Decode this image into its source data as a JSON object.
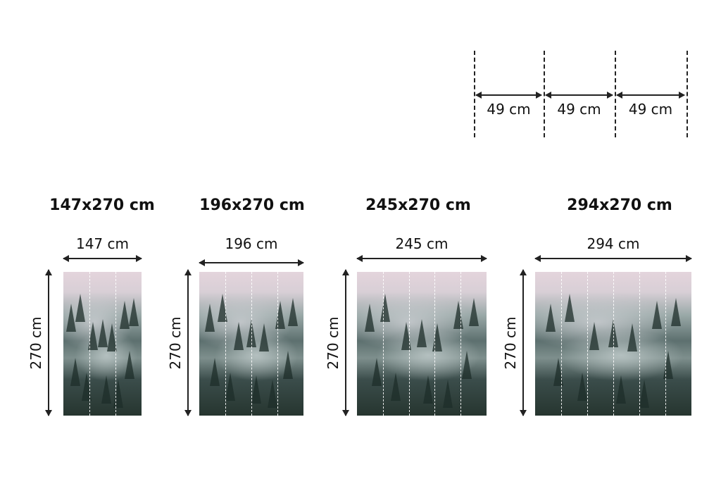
{
  "strip_guide": {
    "labels": [
      "49 cm",
      "49 cm",
      "49 cm"
    ]
  },
  "panels": [
    {
      "title": "147x270 cm",
      "width_label": "147 cm",
      "height_label": "270 cm",
      "strips": 3
    },
    {
      "title": "196x270 cm",
      "width_label": "196 cm",
      "height_label": "270 cm",
      "strips": 4
    },
    {
      "title": "245x270 cm",
      "width_label": "245 cm",
      "height_label": "270 cm",
      "strips": 5
    },
    {
      "title": "294x270 cm",
      "width_label": "294 cm",
      "height_label": "270 cm",
      "strips": 6
    }
  ]
}
